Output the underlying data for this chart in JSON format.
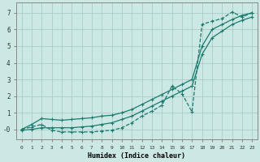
{
  "xlabel": "Humidex (Indice chaleur)",
  "bg_color": "#cce8e4",
  "grid_color": "#aaccc8",
  "line_color": "#1a7a6e",
  "xlim": [
    -0.5,
    23.5
  ],
  "ylim": [
    -0.6,
    7.6
  ],
  "xticks": [
    0,
    1,
    2,
    3,
    4,
    5,
    6,
    7,
    8,
    9,
    10,
    11,
    12,
    13,
    14,
    15,
    16,
    17,
    18,
    19,
    20,
    21,
    22,
    23
  ],
  "yticks": [
    0,
    1,
    2,
    3,
    4,
    5,
    6,
    7
  ],
  "ytick_labels": [
    "-0",
    "1",
    "2",
    "3",
    "4",
    "5",
    "6",
    "7"
  ],
  "line_zigzag_x": [
    0,
    1,
    2,
    3,
    4,
    5,
    6,
    7,
    8,
    9,
    10,
    11,
    12,
    13,
    14,
    15,
    16,
    17,
    18,
    19,
    20,
    21,
    22,
    23
  ],
  "line_zigzag_y": [
    0.0,
    0.15,
    0.3,
    -0.05,
    -0.15,
    -0.15,
    -0.15,
    -0.15,
    -0.1,
    -0.05,
    0.1,
    0.4,
    0.8,
    1.1,
    1.45,
    2.6,
    2.15,
    1.05,
    6.3,
    6.5,
    6.65,
    7.05,
    6.75,
    7.0
  ],
  "line_upper_x": [
    0,
    1,
    2,
    3,
    4,
    5,
    6,
    7,
    8,
    9,
    10,
    11,
    12,
    13,
    14,
    15,
    16,
    17,
    18,
    19,
    20,
    21,
    22,
    23
  ],
  "line_upper_y": [
    0.0,
    0.3,
    0.65,
    0.6,
    0.55,
    0.6,
    0.65,
    0.7,
    0.8,
    0.85,
    1.0,
    1.2,
    1.5,
    1.8,
    2.1,
    2.4,
    2.7,
    3.0,
    5.0,
    6.0,
    6.3,
    6.6,
    6.85,
    7.0
  ],
  "line_lower_x": [
    0,
    1,
    2,
    3,
    4,
    5,
    6,
    7,
    8,
    9,
    10,
    11,
    12,
    13,
    14,
    15,
    16,
    17,
    18,
    19,
    20,
    21,
    22,
    23
  ],
  "line_lower_y": [
    -0.05,
    0.0,
    0.1,
    0.1,
    0.1,
    0.1,
    0.15,
    0.2,
    0.3,
    0.4,
    0.6,
    0.8,
    1.1,
    1.4,
    1.7,
    2.0,
    2.3,
    2.6,
    4.5,
    5.5,
    5.9,
    6.3,
    6.55,
    6.75
  ]
}
